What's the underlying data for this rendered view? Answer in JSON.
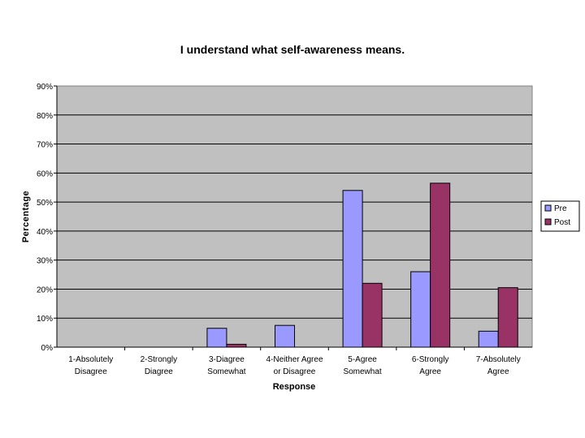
{
  "chart_data": {
    "type": "bar",
    "title": "I understand what self-awareness means.",
    "xlabel": "Response",
    "ylabel": "Percentage",
    "ylim": [
      0,
      90
    ],
    "ytick_step": 10,
    "ytick_suffix": "%",
    "grid": true,
    "legend_position": "right",
    "categories": [
      [
        "1-Absolutely",
        "Disagree"
      ],
      [
        "2-Strongly",
        "Diagree"
      ],
      [
        "3-Diagree",
        "Somewhat"
      ],
      [
        "4-Neither Agree",
        "or Disagree"
      ],
      [
        "5-Agree",
        "Somewhat"
      ],
      [
        "6-Strongly",
        "Agree"
      ],
      [
        "7-Absolutely",
        "Agree"
      ]
    ],
    "series": [
      {
        "name": "Pre",
        "color": "#9999ff",
        "values": [
          0,
          0,
          6.5,
          7.5,
          54,
          26,
          5.5
        ]
      },
      {
        "name": "Post",
        "color": "#993366",
        "values": [
          0,
          0,
          1,
          0,
          22,
          56.5,
          20.5
        ]
      }
    ],
    "plot_background": "#c0c0c0"
  }
}
